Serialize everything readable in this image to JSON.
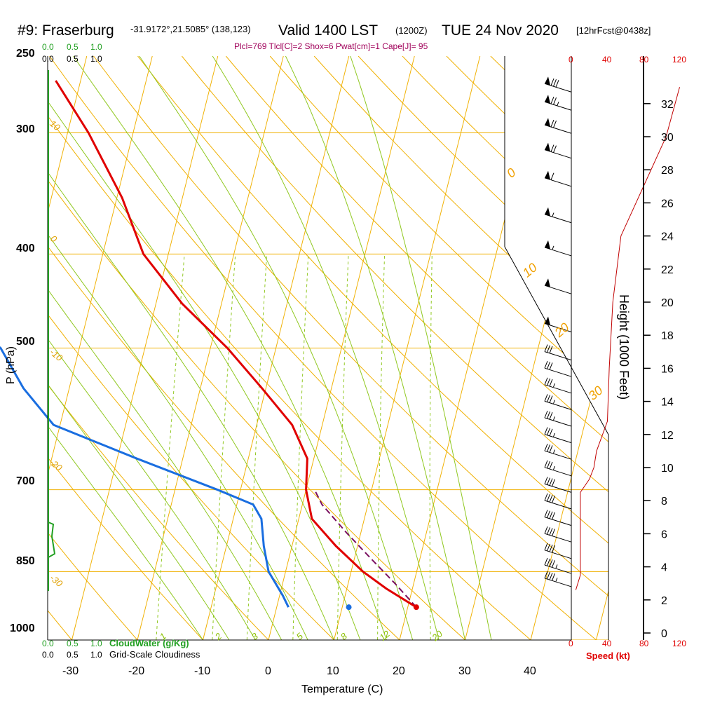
{
  "header": {
    "station": "#9: Fraserburg",
    "coords": "-31.9172°,21.5085° (138,123)",
    "valid": "Valid 1400 LST",
    "utc": "(1200Z)",
    "date": "TUE 24 Nov 2020",
    "forecast": "[12hrFcst@0438z]",
    "params": "Plcl=769 Tlcl[C]=2 Shox=6 Pwat[cm]=1 Cape[J]= 95"
  },
  "axes": {
    "ylabel": "P (hPa)",
    "xlabel": "Temperature (C)",
    "height_label": "Height (1000 Feet)",
    "speed_label": "Speed (kt)",
    "temp_ticks": [
      "-30",
      "-20",
      "-10",
      "0",
      "10",
      "20",
      "30",
      "40"
    ],
    "pressure_ticks": [
      "250",
      "300",
      "400",
      "500",
      "700",
      "850",
      "1000"
    ],
    "height_ticks": [
      "0",
      "2",
      "4",
      "6",
      "8",
      "10",
      "12",
      "14",
      "16",
      "18",
      "20",
      "22",
      "24",
      "26",
      "28",
      "30",
      "32"
    ],
    "speed_ticks": [
      "0",
      "40",
      "80",
      "120"
    ],
    "cloudwater_ticks": [
      "0.0",
      "0.5",
      "1.0"
    ],
    "cloudiness_ticks": [
      "0.0",
      "0.5",
      "1.0"
    ],
    "cloudwater_label": "CloudWater (g/Kg)",
    "cloudiness_label": "Grid-Scale Cloudiness"
  },
  "line_labels": {
    "dry_adiabats": [
      "10",
      "0",
      "-10",
      "-20",
      "-30"
    ],
    "moist_adiabats": [
      "0",
      "10",
      "20",
      "30"
    ],
    "mixing_ratios": [
      "1",
      "2",
      "3",
      "5",
      "8",
      "12",
      "20"
    ]
  },
  "colors": {
    "temperature": "#e00000",
    "dewpoint": "#1a6ee0",
    "parcel": "#7a1060",
    "isotherm": "#f0b000",
    "dry_adiabat": "#f0b000",
    "moist_adiabat": "#90c820",
    "mixing_ratio": "#90c820",
    "cloudwater": "#22a022",
    "height": "#c00000"
  },
  "chart_data": {
    "type": "line",
    "title": "Skew-T log-P sounding, Fraserburg, Valid 1400 LST TUE 24 Nov 2020",
    "xlabel": "Temperature (C)",
    "ylabel": "P (hPa)",
    "xlim": [
      -34,
      46
    ],
    "ylim": [
      1000,
      250
    ],
    "series": [
      {
        "name": "Temperature",
        "points": [
          [
            21.3,
            925
          ],
          [
            16,
            885
          ],
          [
            11.8,
            850
          ],
          [
            6.7,
            800
          ],
          [
            2,
            750
          ],
          [
            0,
            700
          ],
          [
            -1,
            650
          ],
          [
            -4.6,
            600
          ],
          [
            -10.6,
            550
          ],
          [
            -17.4,
            500
          ],
          [
            -26,
            450
          ],
          [
            -33.8,
            400
          ],
          [
            -39.2,
            350
          ],
          [
            -46.8,
            300
          ],
          [
            -53.8,
            265
          ]
        ]
      },
      {
        "name": "Dewpoint",
        "points": [
          [
            1.8,
            925
          ],
          [
            0.5,
            900
          ],
          [
            -2.6,
            850
          ],
          [
            -4.3,
            800
          ],
          [
            -5.7,
            750
          ],
          [
            -7.5,
            725
          ],
          [
            -13.5,
            700
          ],
          [
            -27,
            650
          ],
          [
            -41,
            600
          ],
          [
            -47,
            550
          ],
          [
            -52,
            500
          ],
          [
            -63,
            450
          ],
          [
            -75,
            400
          ],
          [
            -83,
            350
          ],
          [
            -87,
            300
          ],
          [
            -89,
            265
          ]
        ]
      },
      {
        "name": "Parcel",
        "points": [
          [
            21.3,
            925
          ],
          [
            17.2,
            875
          ],
          [
            12.6,
            825
          ],
          [
            7.8,
            775
          ],
          [
            3,
            725
          ],
          [
            1.3,
            700
          ]
        ]
      }
    ],
    "surface_dewpoint": 11,
    "wind_speed_kt": [
      {
        "height_kft": 2.6,
        "speed": 5
      },
      {
        "height_kft": 3.5,
        "speed": 10
      },
      {
        "height_kft": 8.5,
        "speed": 10
      },
      {
        "height_kft": 9.3,
        "speed": 20
      },
      {
        "height_kft": 10,
        "speed": 25
      },
      {
        "height_kft": 11,
        "speed": 28
      },
      {
        "height_kft": 12.8,
        "speed": 40
      },
      {
        "height_kft": 16,
        "speed": 42
      },
      {
        "height_kft": 20,
        "speed": 46
      },
      {
        "height_kft": 24,
        "speed": 55
      },
      {
        "height_kft": 27,
        "speed": 80
      },
      {
        "height_kft": 30,
        "speed": 105
      },
      {
        "height_kft": 32,
        "speed": 115
      },
      {
        "height_kft": 33,
        "speed": 120
      }
    ],
    "wind_barbs": [
      {
        "height_kft": 2.8,
        "speed": 45
      },
      {
        "height_kft": 3.6,
        "speed": 45
      },
      {
        "height_kft": 4.5,
        "speed": 40
      },
      {
        "height_kft": 5.5,
        "speed": 40
      },
      {
        "height_kft": 6.5,
        "speed": 40
      },
      {
        "height_kft": 7.5,
        "speed": 40
      },
      {
        "height_kft": 8.5,
        "speed": 40
      },
      {
        "height_kft": 9.5,
        "speed": 35
      },
      {
        "height_kft": 10.5,
        "speed": 35
      },
      {
        "height_kft": 11.5,
        "speed": 35
      },
      {
        "height_kft": 12.5,
        "speed": 35
      },
      {
        "height_kft": 13.5,
        "speed": 35
      },
      {
        "height_kft": 14.5,
        "speed": 35
      },
      {
        "height_kft": 15.5,
        "speed": 30
      },
      {
        "height_kft": 16.5,
        "speed": 30
      },
      {
        "height_kft": 18.2,
        "speed": 50
      },
      {
        "height_kft": 20.5,
        "speed": 50
      },
      {
        "height_kft": 22.8,
        "speed": 55
      },
      {
        "height_kft": 24.8,
        "speed": 55
      },
      {
        "height_kft": 27,
        "speed": 60
      },
      {
        "height_kft": 28.7,
        "speed": 70
      },
      {
        "height_kft": 30.2,
        "speed": 70
      },
      {
        "height_kft": 31.6,
        "speed": 75
      },
      {
        "height_kft": 32.7,
        "speed": 80
      }
    ]
  }
}
